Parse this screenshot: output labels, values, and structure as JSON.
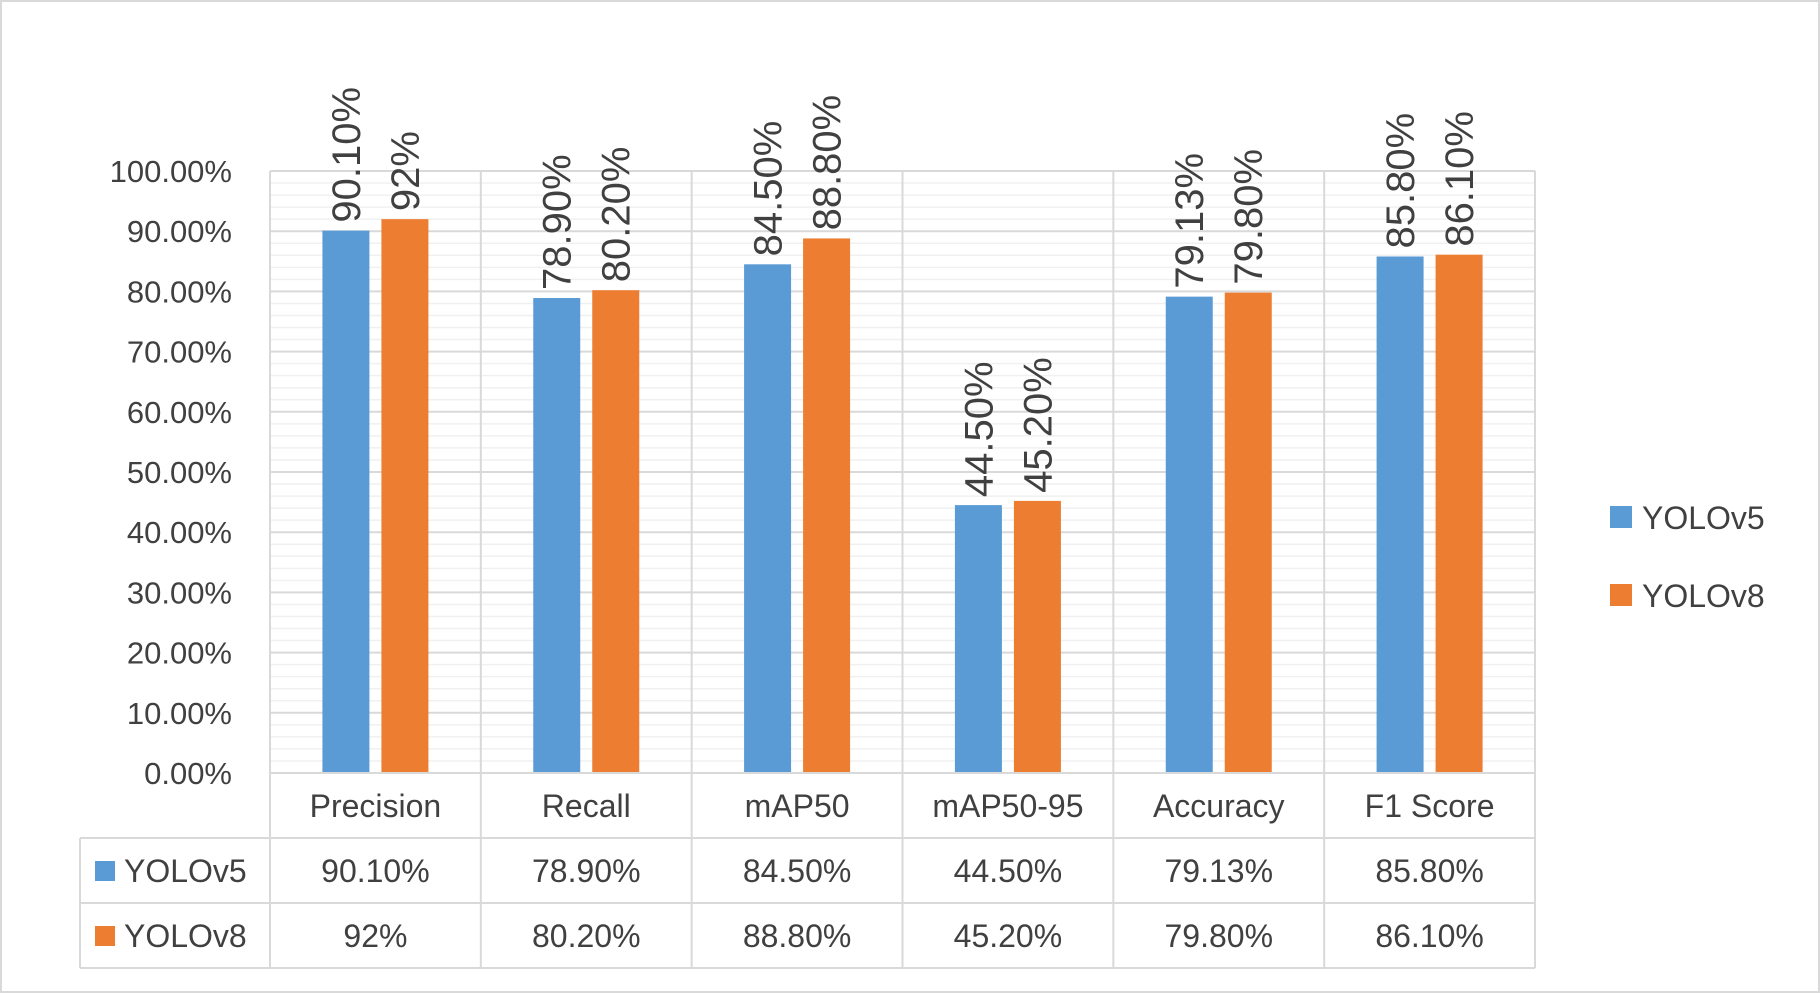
{
  "chart_data": {
    "type": "bar",
    "categories": [
      "Precision",
      "Recall",
      "mAP50",
      "mAP50-95",
      "Accuracy",
      "F1 Score"
    ],
    "series": [
      {
        "name": "YOLOv5",
        "color": "#5B9BD5",
        "values": [
          90.1,
          78.9,
          84.5,
          44.5,
          79.13,
          85.8
        ],
        "labels": [
          "90.10%",
          "78.90%",
          "84.50%",
          "44.50%",
          "79.13%",
          "85.80%"
        ]
      },
      {
        "name": "YOLOv8",
        "color": "#ED7D31",
        "values": [
          92,
          80.2,
          88.8,
          45.2,
          79.8,
          86.1
        ],
        "labels": [
          "92%",
          "80.20%",
          "88.80%",
          "45.20%",
          "79.80%",
          "86.10%"
        ]
      }
    ],
    "ylim": [
      0,
      100
    ],
    "yticks": [
      "0.00%",
      "10.00%",
      "20.00%",
      "30.00%",
      "40.00%",
      "50.00%",
      "60.00%",
      "70.00%",
      "80.00%",
      "90.00%",
      "100.00%"
    ],
    "grid": true,
    "legend": "right",
    "data_table": true
  }
}
